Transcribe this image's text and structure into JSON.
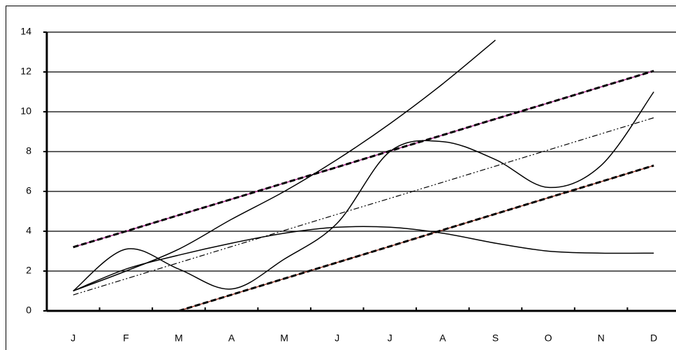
{
  "chart_data": {
    "type": "line",
    "categories": [
      "J",
      "F",
      "M",
      "A",
      "M",
      "J",
      "J",
      "A",
      "S",
      "O",
      "N",
      "D"
    ],
    "ylim": [
      0,
      14
    ],
    "yticks": [
      0,
      2,
      4,
      6,
      8,
      10,
      12,
      14
    ],
    "grid": true,
    "series": [
      {
        "color": "#000000",
        "accent": "#b03090",
        "dash": "8,4",
        "width": 3,
        "smooth": false,
        "values": [
          3.2,
          4.0,
          4.81,
          5.61,
          6.42,
          7.22,
          8.03,
          8.83,
          9.64,
          10.44,
          11.25,
          12.05
        ]
      },
      {
        "color": "#000000",
        "accent": "#a04030",
        "dash": "8,4",
        "width": 3,
        "smooth": false,
        "values": [
          null,
          null,
          0,
          0.81,
          1.62,
          2.43,
          3.24,
          4.06,
          4.87,
          5.68,
          6.49,
          7.3
        ]
      },
      {
        "color": "#000000",
        "dash": "8,3,2,3,2,3",
        "width": 1.2,
        "smooth": false,
        "values": [
          0.8,
          1.61,
          2.42,
          3.23,
          4.04,
          4.85,
          5.65,
          6.46,
          7.27,
          8.08,
          8.89,
          9.7
        ]
      },
      {
        "color": "#000000",
        "width": 1.5,
        "smooth": true,
        "values": [
          1.0,
          2.0,
          3.1,
          4.6,
          6.0,
          7.6,
          9.4,
          11.4,
          13.6,
          null,
          null,
          null
        ]
      },
      {
        "color": "#000000",
        "width": 1.5,
        "smooth": true,
        "values": [
          1.0,
          3.1,
          2.1,
          1.1,
          2.6,
          4.4,
          8.0,
          8.5,
          7.6,
          6.2,
          7.3,
          11.0
        ]
      },
      {
        "color": "#000000",
        "width": 1.5,
        "smooth": true,
        "values": [
          1.0,
          2.1,
          2.8,
          3.4,
          3.9,
          4.2,
          4.2,
          3.9,
          3.4,
          3.0,
          2.9,
          2.9
        ]
      }
    ]
  }
}
